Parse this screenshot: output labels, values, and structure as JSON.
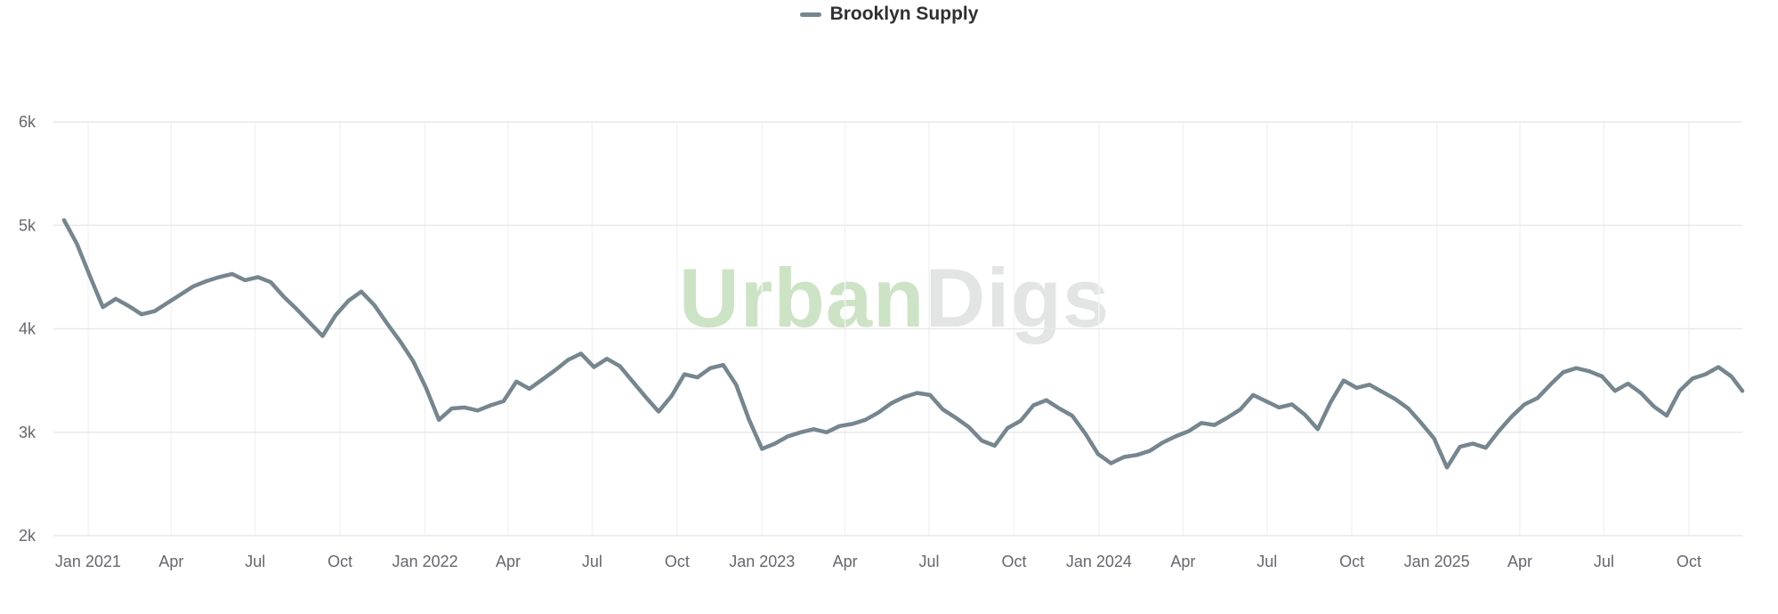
{
  "legend": {
    "label": "Brooklyn Supply",
    "swatch_color": "#75868f"
  },
  "watermark": {
    "text_green": "Urban",
    "text_gray": "Digs",
    "green_color": "#cde3c5",
    "gray_color": "#e3e5e5"
  },
  "chart_data": {
    "type": "line",
    "title": "",
    "xlabel": "",
    "ylabel": "",
    "grid": true,
    "legend_position": "top-center",
    "ylim": [
      2000,
      6000
    ],
    "yticks": [
      {
        "value": 6000,
        "label": "6k"
      },
      {
        "value": 5000,
        "label": "5k"
      },
      {
        "value": 4000,
        "label": "4k"
      },
      {
        "value": 3000,
        "label": "3k"
      },
      {
        "value": 2000,
        "label": "2k"
      }
    ],
    "xticks": [
      {
        "date": "2021-01-01",
        "label": "Jan 2021"
      },
      {
        "date": "2021-04-01",
        "label": "Apr"
      },
      {
        "date": "2021-07-01",
        "label": "Jul"
      },
      {
        "date": "2021-10-01",
        "label": "Oct"
      },
      {
        "date": "2022-01-01",
        "label": "Jan 2022"
      },
      {
        "date": "2022-04-01",
        "label": "Apr"
      },
      {
        "date": "2022-07-01",
        "label": "Jul"
      },
      {
        "date": "2022-10-01",
        "label": "Oct"
      },
      {
        "date": "2023-01-01",
        "label": "Jan 2023"
      },
      {
        "date": "2023-04-01",
        "label": "Apr"
      },
      {
        "date": "2023-07-01",
        "label": "Jul"
      },
      {
        "date": "2023-10-01",
        "label": "Oct"
      },
      {
        "date": "2024-01-01",
        "label": "Jan 2024"
      },
      {
        "date": "2024-04-01",
        "label": "Apr"
      },
      {
        "date": "2024-07-01",
        "label": "Jul"
      },
      {
        "date": "2024-10-01",
        "label": "Oct"
      },
      {
        "date": "2025-01-01",
        "label": "Jan 2025"
      },
      {
        "date": "2025-04-01",
        "label": "Apr"
      },
      {
        "date": "2025-07-01",
        "label": "Jul"
      },
      {
        "date": "2025-10-01",
        "label": "Oct"
      }
    ],
    "series": [
      {
        "name": "Brooklyn Supply",
        "color": "#75868f",
        "points": [
          [
            "2020-12-06",
            5050
          ],
          [
            "2020-12-20",
            4820
          ],
          [
            "2021-01-03",
            4510
          ],
          [
            "2021-01-17",
            4210
          ],
          [
            "2021-01-31",
            4290
          ],
          [
            "2021-02-14",
            4220
          ],
          [
            "2021-02-28",
            4140
          ],
          [
            "2021-03-14",
            4170
          ],
          [
            "2021-03-28",
            4250
          ],
          [
            "2021-04-11",
            4330
          ],
          [
            "2021-04-25",
            4410
          ],
          [
            "2021-05-09",
            4460
          ],
          [
            "2021-05-23",
            4500
          ],
          [
            "2021-06-06",
            4530
          ],
          [
            "2021-06-20",
            4470
          ],
          [
            "2021-07-04",
            4500
          ],
          [
            "2021-07-18",
            4450
          ],
          [
            "2021-08-01",
            4310
          ],
          [
            "2021-08-15",
            4190
          ],
          [
            "2021-08-29",
            4060
          ],
          [
            "2021-09-12",
            3930
          ],
          [
            "2021-09-26",
            4130
          ],
          [
            "2021-10-10",
            4270
          ],
          [
            "2021-10-24",
            4360
          ],
          [
            "2021-11-07",
            4230
          ],
          [
            "2021-11-21",
            4050
          ],
          [
            "2021-12-05",
            3880
          ],
          [
            "2021-12-19",
            3690
          ],
          [
            "2022-01-02",
            3430
          ],
          [
            "2022-01-16",
            3120
          ],
          [
            "2022-01-30",
            3230
          ],
          [
            "2022-02-13",
            3240
          ],
          [
            "2022-02-27",
            3210
          ],
          [
            "2022-03-13",
            3260
          ],
          [
            "2022-03-27",
            3300
          ],
          [
            "2022-04-10",
            3490
          ],
          [
            "2022-04-24",
            3420
          ],
          [
            "2022-05-08",
            3510
          ],
          [
            "2022-05-22",
            3600
          ],
          [
            "2022-06-05",
            3700
          ],
          [
            "2022-06-19",
            3760
          ],
          [
            "2022-07-03",
            3630
          ],
          [
            "2022-07-17",
            3710
          ],
          [
            "2022-07-31",
            3640
          ],
          [
            "2022-08-14",
            3490
          ],
          [
            "2022-08-28",
            3340
          ],
          [
            "2022-09-11",
            3200
          ],
          [
            "2022-09-25",
            3350
          ],
          [
            "2022-10-09",
            3560
          ],
          [
            "2022-10-23",
            3530
          ],
          [
            "2022-11-06",
            3620
          ],
          [
            "2022-11-20",
            3650
          ],
          [
            "2022-12-04",
            3460
          ],
          [
            "2022-12-18",
            3120
          ],
          [
            "2023-01-01",
            2840
          ],
          [
            "2023-01-15",
            2890
          ],
          [
            "2023-01-29",
            2960
          ],
          [
            "2023-02-12",
            3000
          ],
          [
            "2023-02-26",
            3030
          ],
          [
            "2023-03-12",
            3000
          ],
          [
            "2023-03-26",
            3060
          ],
          [
            "2023-04-09",
            3080
          ],
          [
            "2023-04-23",
            3120
          ],
          [
            "2023-05-07",
            3190
          ],
          [
            "2023-05-21",
            3280
          ],
          [
            "2023-06-04",
            3340
          ],
          [
            "2023-06-18",
            3380
          ],
          [
            "2023-07-02",
            3360
          ],
          [
            "2023-07-16",
            3220
          ],
          [
            "2023-07-30",
            3140
          ],
          [
            "2023-08-13",
            3050
          ],
          [
            "2023-08-27",
            2920
          ],
          [
            "2023-09-10",
            2870
          ],
          [
            "2023-09-24",
            3040
          ],
          [
            "2023-10-08",
            3110
          ],
          [
            "2023-10-22",
            3260
          ],
          [
            "2023-11-05",
            3310
          ],
          [
            "2023-11-19",
            3230
          ],
          [
            "2023-12-03",
            3160
          ],
          [
            "2023-12-17",
            2990
          ],
          [
            "2023-12-31",
            2790
          ],
          [
            "2024-01-14",
            2700
          ],
          [
            "2024-01-28",
            2760
          ],
          [
            "2024-02-11",
            2780
          ],
          [
            "2024-02-25",
            2820
          ],
          [
            "2024-03-10",
            2900
          ],
          [
            "2024-03-24",
            2960
          ],
          [
            "2024-04-07",
            3010
          ],
          [
            "2024-04-21",
            3090
          ],
          [
            "2024-05-05",
            3070
          ],
          [
            "2024-05-19",
            3140
          ],
          [
            "2024-06-02",
            3220
          ],
          [
            "2024-06-16",
            3360
          ],
          [
            "2024-06-30",
            3300
          ],
          [
            "2024-07-14",
            3240
          ],
          [
            "2024-07-28",
            3270
          ],
          [
            "2024-08-11",
            3170
          ],
          [
            "2024-08-25",
            3030
          ],
          [
            "2024-09-08",
            3290
          ],
          [
            "2024-09-22",
            3500
          ],
          [
            "2024-10-06",
            3430
          ],
          [
            "2024-10-20",
            3460
          ],
          [
            "2024-11-03",
            3390
          ],
          [
            "2024-11-17",
            3320
          ],
          [
            "2024-12-01",
            3230
          ],
          [
            "2024-12-15",
            3090
          ],
          [
            "2024-12-29",
            2940
          ],
          [
            "2025-01-12",
            2660
          ],
          [
            "2025-01-26",
            2860
          ],
          [
            "2025-02-09",
            2890
          ],
          [
            "2025-02-23",
            2850
          ],
          [
            "2025-03-09",
            3010
          ],
          [
            "2025-03-23",
            3150
          ],
          [
            "2025-04-06",
            3270
          ],
          [
            "2025-04-20",
            3330
          ],
          [
            "2025-05-04",
            3460
          ],
          [
            "2025-05-18",
            3580
          ],
          [
            "2025-06-01",
            3620
          ],
          [
            "2025-06-15",
            3590
          ],
          [
            "2025-06-29",
            3540
          ],
          [
            "2025-07-13",
            3400
          ],
          [
            "2025-07-27",
            3470
          ],
          [
            "2025-08-10",
            3380
          ],
          [
            "2025-08-24",
            3250
          ],
          [
            "2025-09-07",
            3160
          ],
          [
            "2025-09-21",
            3400
          ],
          [
            "2025-10-05",
            3520
          ],
          [
            "2025-10-19",
            3560
          ],
          [
            "2025-11-02",
            3630
          ],
          [
            "2025-11-16",
            3540
          ],
          [
            "2025-11-28",
            3400
          ]
        ]
      }
    ]
  }
}
